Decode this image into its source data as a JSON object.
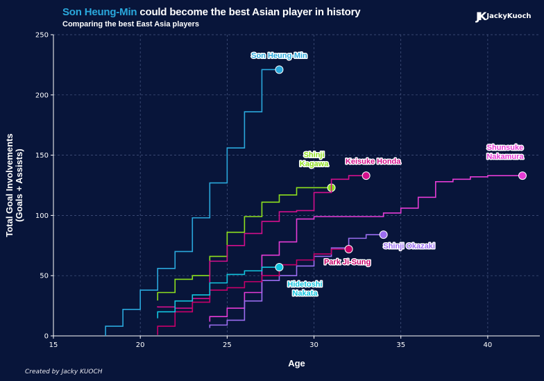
{
  "header": {
    "title_highlight": "Son Heung-Min",
    "title_rest": " could become the best Asian player in history",
    "subtitle": "Comparing the best East Asia players",
    "logo_text": "JackyKuoch",
    "logo_mark": "JK"
  },
  "footer": {
    "credit": "Created by Jacky KUOCH"
  },
  "chart_data": {
    "type": "line",
    "step": true,
    "title": "Son Heung-Min could become the best Asian player in history",
    "subtitle": "Comparing the best East Asia players",
    "xlabel": "Age",
    "ylabel": "Total Goal Involvements\n(Goals + Assists)",
    "xlim": [
      15,
      43
    ],
    "ylim": [
      0,
      250
    ],
    "xticks": [
      15,
      20,
      25,
      30,
      35,
      40
    ],
    "yticks": [
      0,
      50,
      100,
      150,
      200,
      250
    ],
    "grid": true,
    "series": [
      {
        "name": "Son Heung-Min",
        "label_lines": [
          "Son Heung-Min"
        ],
        "color": "#2aa8dc",
        "x": [
          18,
          19,
          20,
          21,
          22,
          23,
          24,
          25,
          26,
          27,
          28
        ],
        "y": [
          8,
          22,
          38,
          56,
          70,
          98,
          127,
          156,
          186,
          221,
          221
        ]
      },
      {
        "name": "Shinji Kagawa",
        "label_lines": [
          "Shinji",
          "Kagawa"
        ],
        "color": "#8ee01e",
        "x": [
          21,
          22,
          23,
          24,
          25,
          26,
          27,
          28,
          29,
          30,
          31
        ],
        "y": [
          36,
          47,
          50,
          66,
          86,
          99,
          111,
          117,
          123,
          123,
          123
        ]
      },
      {
        "name": "Keisuke Honda",
        "label_lines": [
          "Keisuke Honda"
        ],
        "color": "#d40f8c",
        "x": [
          21,
          22,
          23,
          24,
          25,
          26,
          27,
          28,
          29,
          30,
          31,
          32,
          33
        ],
        "y": [
          24,
          23,
          31,
          62,
          75,
          85,
          95,
          103,
          104,
          119,
          130,
          133,
          133
        ]
      },
      {
        "name": "Shunsuke Nakamura",
        "label_lines": [
          "Shunsuke",
          "Nakamura"
        ],
        "color": "#e63cd6",
        "x": [
          24,
          25,
          26,
          27,
          28,
          29,
          30,
          31,
          32,
          33,
          34,
          35,
          36,
          37,
          38,
          39,
          40,
          41,
          42
        ],
        "y": [
          16,
          23,
          36,
          67,
          78,
          97,
          99,
          99,
          99,
          99,
          102,
          106,
          115,
          128,
          130,
          132,
          133,
          133,
          133
        ]
      },
      {
        "name": "Shinji Okazaki",
        "label_lines": [
          "Shinji Okazaki"
        ],
        "color": "#9b6df0",
        "x": [
          24,
          25,
          26,
          27,
          28,
          29,
          30,
          31,
          32,
          33,
          34
        ],
        "y": [
          9,
          13,
          29,
          46,
          50,
          58,
          66,
          73,
          81,
          84,
          84
        ]
      },
      {
        "name": "Park Ji-Sung",
        "label_lines": [
          "Park Ji-Sung"
        ],
        "color": "#c8006a",
        "x": [
          21,
          22,
          23,
          24,
          25,
          26,
          27,
          28,
          29,
          30,
          31,
          32
        ],
        "y": [
          8,
          20,
          28,
          38,
          40,
          45,
          50,
          59,
          63,
          68,
          72,
          72
        ]
      },
      {
        "name": "Hidetoshi Nakata",
        "label_lines": [
          "Hidetoshi",
          "Nakata"
        ],
        "color": "#12c6e0",
        "x": [
          21,
          22,
          23,
          24,
          25,
          26,
          27,
          28
        ],
        "y": [
          20,
          29,
          34,
          44,
          51,
          54,
          57,
          57
        ]
      }
    ]
  }
}
